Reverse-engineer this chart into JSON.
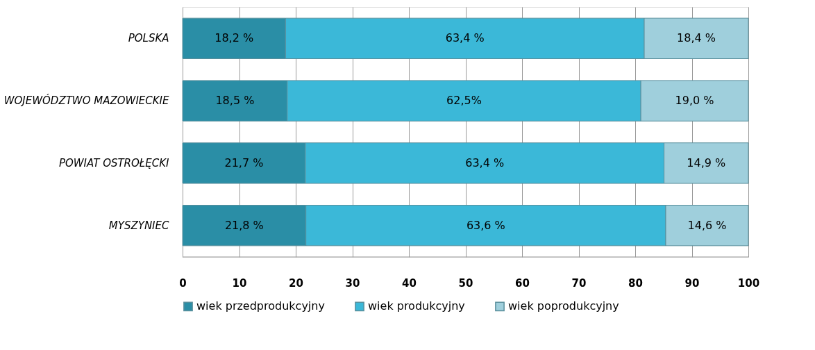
{
  "chart_data": {
    "type": "bar",
    "orientation": "horizontal",
    "stacked": true,
    "categories": [
      "POLSKA",
      "WOJEWÓDZTWO MAZOWIECKIE",
      "POWIAT OSTROŁĘCKI",
      "MYSZYNIEC"
    ],
    "series": [
      {
        "name": "wiek przedprodukcyjny",
        "color": "#2a8ea6",
        "values": [
          18.2,
          18.5,
          21.7,
          21.8
        ],
        "value_labels": [
          "18,2 %",
          "18,5 %",
          "21,7 %",
          "21,8 %"
        ]
      },
      {
        "name": "wiek produkcyjny",
        "color": "#3bb8d8",
        "values": [
          63.4,
          62.5,
          63.4,
          63.6
        ],
        "value_labels": [
          "63,4 %",
          "62,5%",
          "63,4 %",
          "63,6 %"
        ]
      },
      {
        "name": "wiek poprodukcyjny",
        "color": "#9fcfdc",
        "values": [
          18.4,
          19.0,
          14.9,
          14.6
        ],
        "value_labels": [
          "18,4 %",
          "19,0 %",
          "14,9 %",
          "14,6 %"
        ]
      }
    ],
    "xlim": [
      0,
      100
    ],
    "xticks": [
      0,
      10,
      20,
      30,
      40,
      50,
      60,
      70,
      80,
      90,
      100
    ],
    "grid": "x",
    "legend": "bottom"
  }
}
